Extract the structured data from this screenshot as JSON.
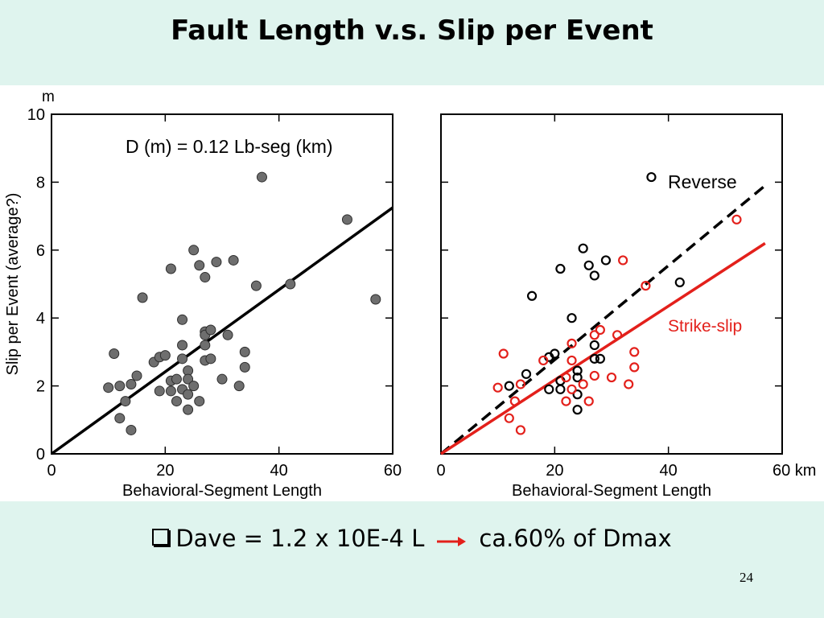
{
  "slide": {
    "title": "Fault Length v.s. Slip per Event",
    "caption_pre": "Dave = 1.2 x 10E-4 L",
    "caption_post": "ca.60% of Dmax",
    "page_number": "24"
  },
  "colors": {
    "background": "#dff4ee",
    "point_fill": "#6e6e6e",
    "reverse": "#000000",
    "strike_slip": "#e3201b",
    "arrow": "#e3201b"
  },
  "chart_data": [
    {
      "type": "scatter",
      "unit_label": "m",
      "ylabel": "Slip per Event (average?)",
      "xlabel": "Behavioral-Segment Length",
      "xlim": [
        0,
        60
      ],
      "ylim": [
        0,
        10
      ],
      "xticks": [
        "0",
        "20",
        "40",
        "60"
      ],
      "yticks": [
        "0",
        "2",
        "4",
        "6",
        "8",
        "10"
      ],
      "annotation": "D (m) = 0.12 Lb-seg (km)",
      "fit_line": [
        [
          0,
          0
        ],
        [
          60,
          7.25
        ]
      ],
      "points": [
        [
          10,
          1.95
        ],
        [
          11,
          2.95
        ],
        [
          12,
          2.0
        ],
        [
          12,
          1.05
        ],
        [
          13,
          1.55
        ],
        [
          14,
          0.7
        ],
        [
          14,
          2.05
        ],
        [
          15,
          2.3
        ],
        [
          16,
          4.6
        ],
        [
          18,
          2.7
        ],
        [
          19,
          2.85
        ],
        [
          19,
          1.85
        ],
        [
          20,
          2.9
        ],
        [
          21,
          5.45
        ],
        [
          21,
          2.15
        ],
        [
          21,
          1.85
        ],
        [
          22,
          1.55
        ],
        [
          22,
          2.2
        ],
        [
          23,
          3.95
        ],
        [
          23,
          3.2
        ],
        [
          23,
          2.8
        ],
        [
          23,
          1.9
        ],
        [
          24,
          2.45
        ],
        [
          24,
          2.2
        ],
        [
          24,
          1.75
        ],
        [
          24,
          1.3
        ],
        [
          25,
          6.0
        ],
        [
          25,
          2.0
        ],
        [
          26,
          5.55
        ],
        [
          26,
          1.55
        ],
        [
          27,
          5.2
        ],
        [
          27,
          3.6
        ],
        [
          27,
          3.5
        ],
        [
          27,
          3.2
        ],
        [
          27,
          2.75
        ],
        [
          28,
          3.65
        ],
        [
          28,
          2.8
        ],
        [
          29,
          5.65
        ],
        [
          30,
          2.2
        ],
        [
          31,
          3.5
        ],
        [
          32,
          5.7
        ],
        [
          33,
          2.0
        ],
        [
          34,
          3.0
        ],
        [
          34,
          2.55
        ],
        [
          36,
          4.95
        ],
        [
          37,
          8.15
        ],
        [
          42,
          5.0
        ],
        [
          52,
          6.9
        ],
        [
          57,
          4.55
        ]
      ]
    },
    {
      "type": "scatter",
      "xlabel": "Behavioral-Segment Length",
      "x_unit_label": "60 km",
      "xlim": [
        0,
        60
      ],
      "ylim": [
        0,
        10
      ],
      "xticks": [
        "0",
        "20",
        "40"
      ],
      "series": [
        {
          "name": "Reverse",
          "color": "#000000",
          "line": "dashed",
          "fit_line": [
            [
              0,
              0
            ],
            [
              57,
              7.9
            ]
          ],
          "points": [
            [
              12,
              2.0
            ],
            [
              15,
              2.35
            ],
            [
              16,
              4.65
            ],
            [
              19,
              1.9
            ],
            [
              19,
              2.85
            ],
            [
              20,
              2.95
            ],
            [
              21,
              5.45
            ],
            [
              21,
              2.15
            ],
            [
              21,
              1.9
            ],
            [
              23,
              4.0
            ],
            [
              24,
              2.45
            ],
            [
              24,
              2.25
            ],
            [
              24,
              1.75
            ],
            [
              24,
              1.3
            ],
            [
              25,
              6.05
            ],
            [
              26,
              5.55
            ],
            [
              27,
              5.25
            ],
            [
              27,
              3.2
            ],
            [
              27,
              2.8
            ],
            [
              28,
              2.8
            ],
            [
              29,
              5.7
            ],
            [
              37,
              8.15
            ],
            [
              42,
              5.05
            ]
          ]
        },
        {
          "name": "Strike-slip",
          "color": "#e3201b",
          "line": "solid",
          "fit_line": [
            [
              0,
              0
            ],
            [
              57,
              6.2
            ]
          ],
          "points": [
            [
              10,
              1.95
            ],
            [
              11,
              2.95
            ],
            [
              12,
              1.05
            ],
            [
              13,
              1.55
            ],
            [
              14,
              0.7
            ],
            [
              14,
              2.05
            ],
            [
              18,
              2.75
            ],
            [
              22,
              2.25
            ],
            [
              22,
              1.55
            ],
            [
              23,
              3.25
            ],
            [
              23,
              2.75
            ],
            [
              23,
              1.9
            ],
            [
              25,
              2.05
            ],
            [
              26,
              1.55
            ],
            [
              27,
              3.5
            ],
            [
              27,
              2.3
            ],
            [
              28,
              3.65
            ],
            [
              30,
              2.25
            ],
            [
              31,
              3.5
            ],
            [
              32,
              5.7
            ],
            [
              33,
              2.05
            ],
            [
              34,
              3.0
            ],
            [
              34,
              2.55
            ],
            [
              36,
              4.95
            ],
            [
              52,
              6.9
            ]
          ]
        }
      ]
    }
  ]
}
